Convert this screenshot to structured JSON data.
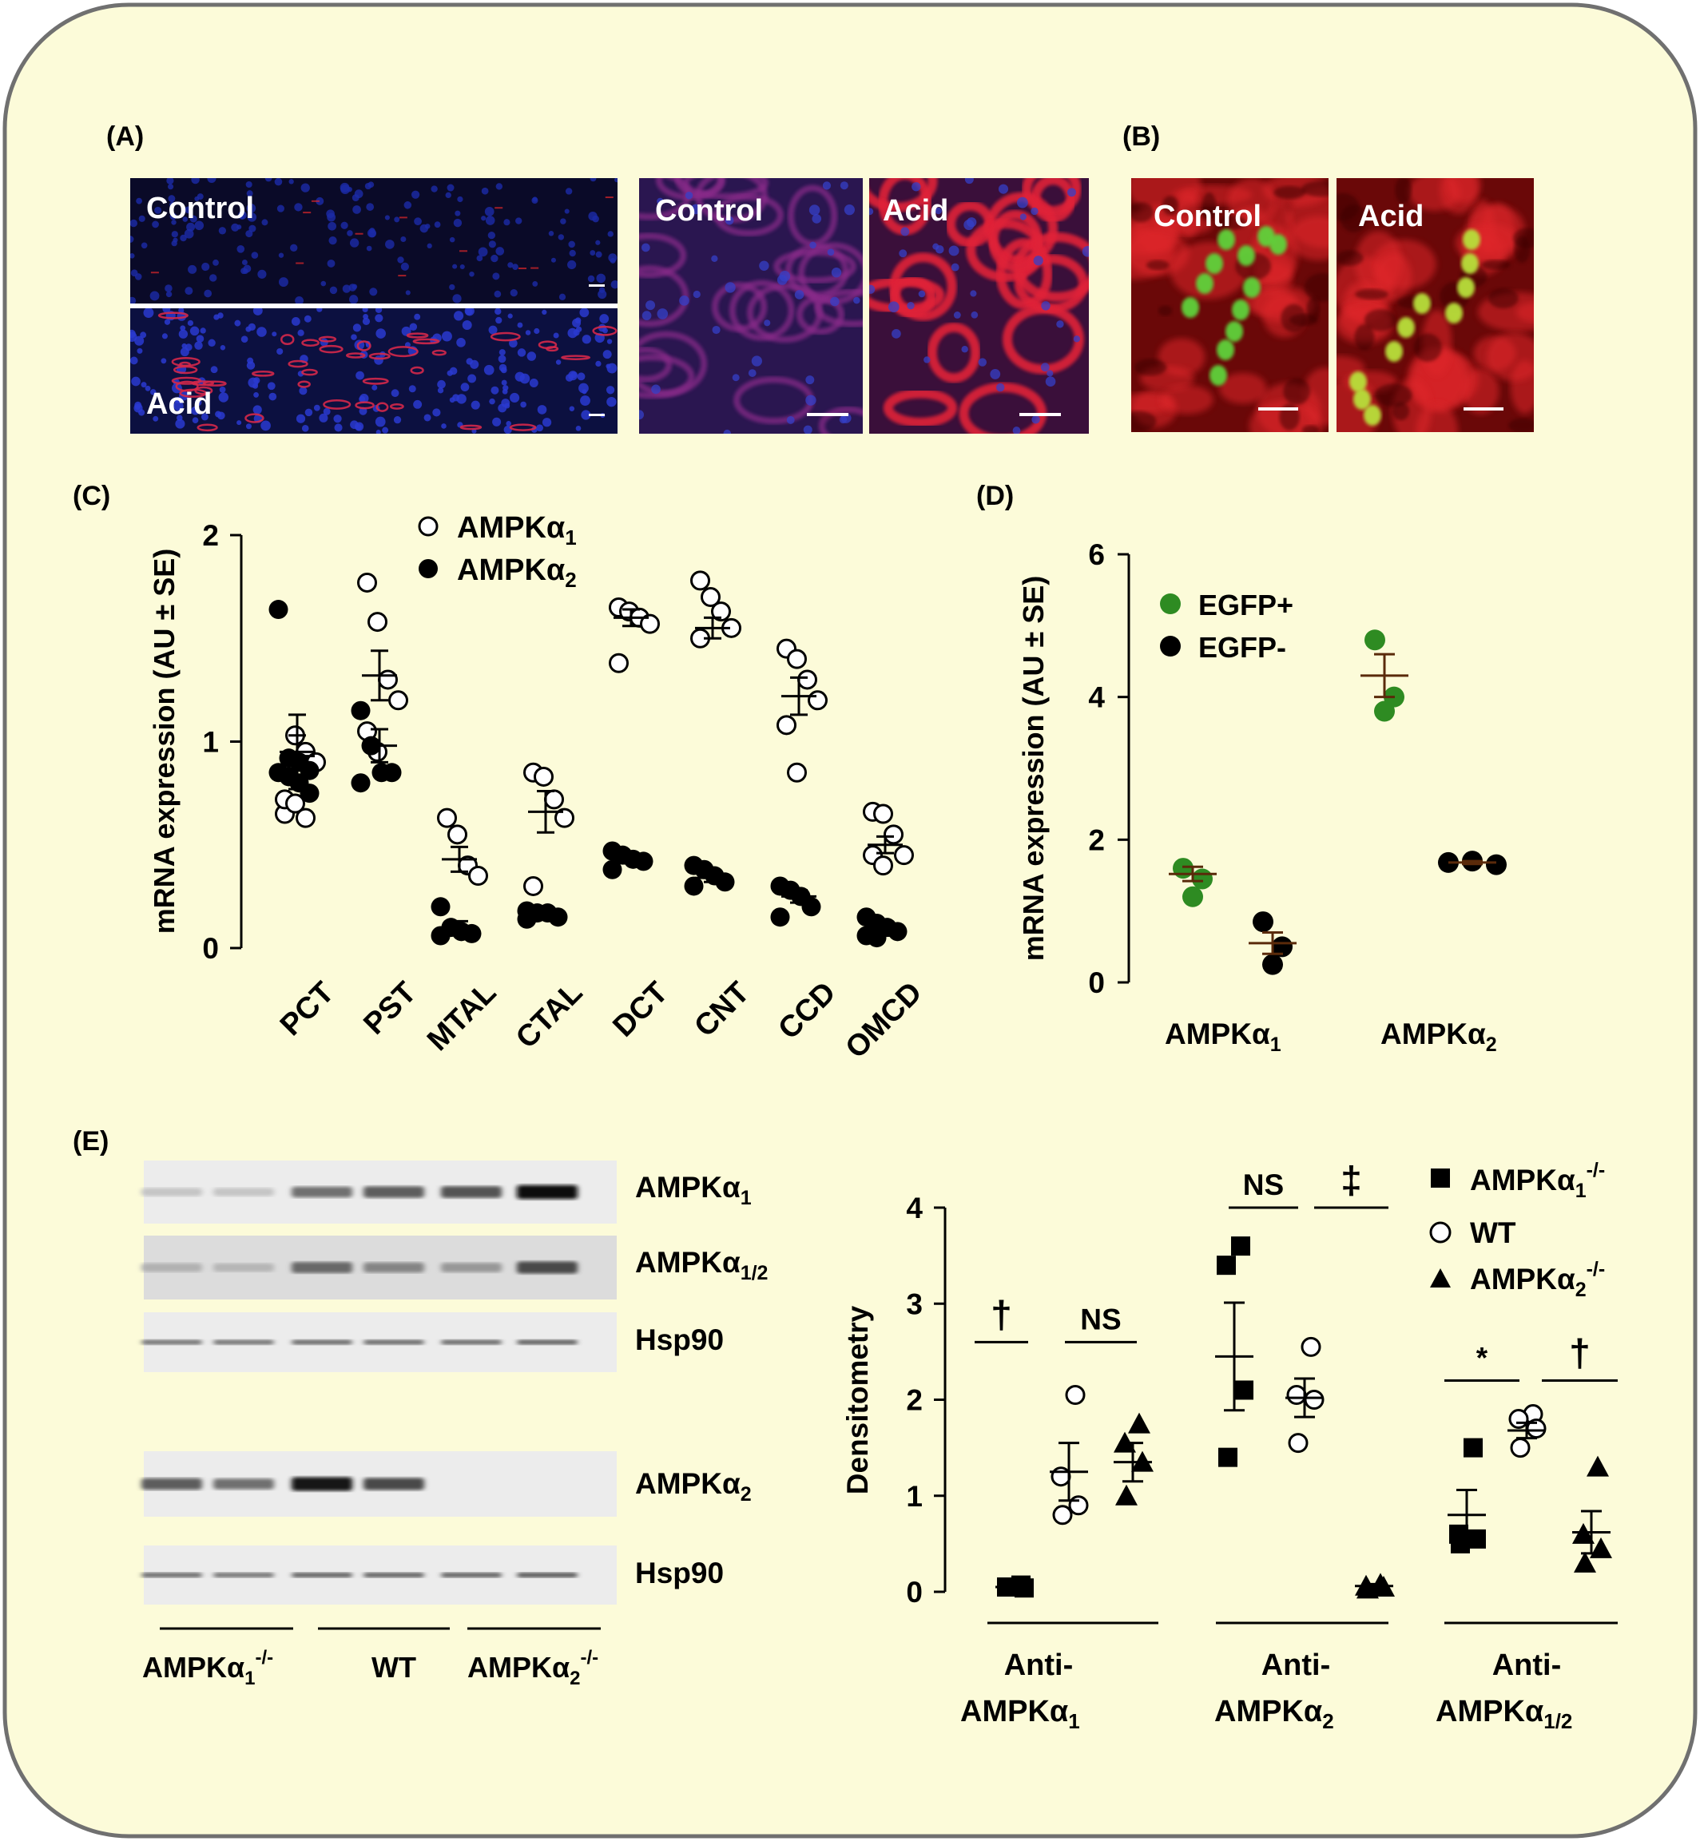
{
  "panels": {
    "a": "(A)",
    "b": "(B)",
    "c": "(C)",
    "d": "(D)",
    "e": "(E)"
  },
  "micro": {
    "a_low_top": "Control",
    "a_low_bottom": "Acid",
    "a_high_left": "Control",
    "a_high_right": "Acid",
    "b_left": "Control",
    "b_right": "Acid",
    "colors": {
      "nuclear_blue": "#1c2aa8",
      "membrane_red": "#e0262a",
      "egfp_green": "#5fd23a",
      "dark_bg": "#0c0c2a"
    }
  },
  "chart_data": [
    {
      "id": "C",
      "type": "scatter",
      "ylabel": "mRNA expression (AU ± SE)",
      "ylim": [
        0,
        2
      ],
      "yticks": [
        "0",
        "1",
        "2"
      ],
      "categories": [
        "PCT",
        "PST",
        "MTAL",
        "CTAL",
        "DCT",
        "CNT",
        "CCD",
        "OMCD"
      ],
      "legend": [
        {
          "symbol": "○",
          "label": "AMPKα",
          "sub": "1"
        },
        {
          "symbol": "●",
          "label": "AMPKα",
          "sub": "2"
        }
      ],
      "series": [
        {
          "name": "AMPKα1",
          "marker": "open-circle",
          "points": [
            [
              0.65,
              1.03,
              0.95,
              0.9,
              0.72,
              0.7,
              0.63
            ],
            [
              1.77,
              1.58,
              1.3,
              1.2,
              1.05,
              0.95
            ],
            [
              0.63,
              0.55,
              0.4,
              0.35
            ],
            [
              0.85,
              0.83,
              0.72,
              0.63,
              0.3
            ],
            [
              1.65,
              1.63,
              1.6,
              1.57,
              1.38
            ],
            [
              1.78,
              1.7,
              1.63,
              1.55,
              1.5
            ],
            [
              1.45,
              1.4,
              1.3,
              1.2,
              1.08,
              0.85
            ],
            [
              0.66,
              0.65,
              0.55,
              0.45,
              0.45,
              0.4
            ]
          ],
          "mean": [
            0.95,
            1.32,
            0.43,
            0.66,
            1.6,
            1.55,
            1.22,
            0.5
          ],
          "se": [
            0.18,
            0.12,
            0.06,
            0.1,
            0.04,
            0.05,
            0.09,
            0.04
          ]
        },
        {
          "name": "AMPKα2",
          "marker": "filled-circle",
          "points": [
            [
              1.64,
              0.92,
              0.9,
              0.86,
              0.85,
              0.83,
              0.8,
              0.75
            ],
            [
              1.15,
              0.98,
              0.85,
              0.85,
              0.8
            ],
            [
              0.2,
              0.1,
              0.08,
              0.07,
              0.06
            ],
            [
              0.18,
              0.17,
              0.17,
              0.15,
              0.14
            ],
            [
              0.47,
              0.45,
              0.43,
              0.42,
              0.38
            ],
            [
              0.4,
              0.38,
              0.35,
              0.32,
              0.3
            ],
            [
              0.3,
              0.28,
              0.25,
              0.2,
              0.15
            ],
            [
              0.15,
              0.12,
              0.1,
              0.08,
              0.06,
              0.05
            ]
          ],
          "mean": [
            0.93,
            0.98,
            0.1,
            0.16,
            0.43,
            0.34,
            0.25,
            0.08
          ],
          "se": [
            0.1,
            0.08,
            0.03,
            0.01,
            0.02,
            0.02,
            0.03,
            0.02
          ]
        }
      ]
    },
    {
      "id": "D",
      "type": "scatter",
      "ylabel": "mRNA expression (AU ± SE)",
      "ylim": [
        0,
        6
      ],
      "yticks": [
        "0",
        "2",
        "4",
        "6"
      ],
      "categories": [
        {
          "label": "AMPKα",
          "sub": "1"
        },
        {
          "label": "AMPKα",
          "sub": "2"
        }
      ],
      "legend": [
        {
          "symbol": "●",
          "color": "#2e8b22",
          "label": "EGFP+"
        },
        {
          "symbol": "●",
          "color": "#000000",
          "label": "EGFP-"
        }
      ],
      "series": [
        {
          "name": "EGFP+",
          "color": "#2e8b22",
          "points": [
            [
              1.6,
              1.45,
              1.2
            ],
            [
              4.8,
              4.0,
              3.8
            ]
          ],
          "mean": [
            1.52,
            4.3
          ],
          "se": [
            0.1,
            0.3
          ]
        },
        {
          "name": "EGFP-",
          "color": "#000000",
          "points": [
            [
              0.85,
              0.5,
              0.25
            ],
            [
              1.68,
              1.7,
              1.65
            ]
          ],
          "mean": [
            0.55,
            1.68
          ],
          "se": [
            0.15,
            0.02
          ]
        }
      ]
    },
    {
      "id": "E-blot",
      "type": "table",
      "bands": [
        {
          "label": "AMPKα",
          "sub": "1",
          "sup": "",
          "intensities": [
            0.02,
            0.02,
            0.45,
            0.55,
            0.6,
            0.95
          ]
        },
        {
          "label": "AMPKα",
          "sub": "1/2",
          "sup": "",
          "intensities": [
            0.12,
            0.1,
            0.5,
            0.35,
            0.25,
            0.65
          ]
        },
        {
          "label": "Hsp90",
          "sub": "",
          "sup": "",
          "intensities": [
            0.45,
            0.45,
            0.5,
            0.5,
            0.5,
            0.55
          ]
        },
        {
          "label": "AMPKα",
          "sub": "2",
          "sup": "",
          "intensities": [
            0.55,
            0.45,
            0.9,
            0.65,
            0.0,
            0.0
          ]
        },
        {
          "label": "Hsp90",
          "sub": "",
          "sup": "",
          "intensities": [
            0.5,
            0.45,
            0.55,
            0.55,
            0.55,
            0.6
          ]
        }
      ],
      "groups": [
        {
          "label": "AMPKα",
          "sub": "1",
          "sup": "-/-"
        },
        {
          "label": "WT",
          "sub": "",
          "sup": ""
        },
        {
          "label": "AMPKα",
          "sub": "2",
          "sup": "-/-"
        }
      ]
    },
    {
      "id": "E-densitometry",
      "type": "scatter",
      "ylabel": "Densitometry",
      "ylim": [
        0,
        4
      ],
      "yticks": [
        "0",
        "1",
        "2",
        "3",
        "4"
      ],
      "groups": [
        {
          "line1": "Anti-",
          "line2": "AMPKα",
          "sub": "1"
        },
        {
          "line1": "Anti-",
          "line2": "AMPKα",
          "sub": "2"
        },
        {
          "line1": "Anti-",
          "line2": "AMPKα",
          "sub": "1/2"
        }
      ],
      "legend": [
        {
          "marker": "square",
          "label": "AMPKα",
          "sub": "1",
          "sup": "-/-"
        },
        {
          "marker": "open-circle",
          "label": "WT",
          "sub": "",
          "sup": ""
        },
        {
          "marker": "triangle",
          "label": "AMPKα",
          "sub": "2",
          "sup": "-/-"
        }
      ],
      "series": [
        {
          "name": "AMPKα1-/-",
          "marker": "square",
          "points": [
            [
              0.07,
              0.05,
              0.04,
              0.05
            ],
            [
              3.6,
              3.4,
              2.1,
              1.4
            ],
            [
              1.5,
              0.6,
              0.55,
              0.5
            ]
          ],
          "mean": [
            0.05,
            2.45,
            0.8
          ],
          "se": [
            0.01,
            0.56,
            0.26
          ]
        },
        {
          "name": "WT",
          "marker": "open-circle",
          "points": [
            [
              2.05,
              1.2,
              0.9,
              0.8
            ],
            [
              2.55,
              2.05,
              2.0,
              1.55
            ],
            [
              1.85,
              1.8,
              1.7,
              1.5
            ]
          ],
          "mean": [
            1.25,
            2.02,
            1.68
          ],
          "se": [
            0.3,
            0.2,
            0.08
          ]
        },
        {
          "name": "AMPKα2-/-",
          "marker": "triangle",
          "points": [
            [
              1.75,
              1.55,
              1.35,
              1.0
            ],
            [
              0.08,
              0.06,
              0.05,
              0.03
            ],
            [
              1.3,
              0.6,
              0.45,
              0.3
            ]
          ],
          "mean": [
            1.35,
            0.06,
            0.62
          ],
          "se": [
            0.2,
            0.02,
            0.22
          ]
        }
      ],
      "significance": [
        {
          "label": "†",
          "group": 0,
          "pair": "left",
          "y": 2.6
        },
        {
          "label": "NS",
          "group": 0,
          "pair": "right",
          "y": 2.6
        },
        {
          "label": "NS",
          "group": 1,
          "pair": "left",
          "y": 4.0
        },
        {
          "label": "‡",
          "group": 1,
          "pair": "right",
          "y": 4.0
        },
        {
          "label": "*",
          "group": 2,
          "pair": "left",
          "y": 2.2
        },
        {
          "label": "†",
          "group": 2,
          "pair": "right",
          "y": 2.2
        }
      ]
    }
  ]
}
